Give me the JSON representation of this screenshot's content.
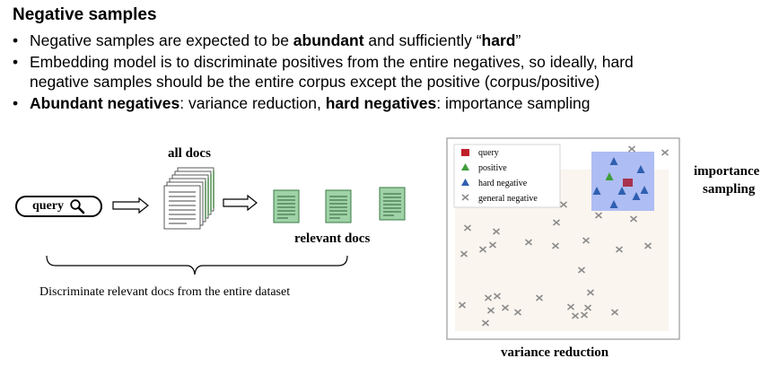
{
  "slide": {
    "title": "Negative samples",
    "bullet1": {
      "pre": "Negative samples are expected to be ",
      "b1": "abundant",
      "mid": " and sufficiently “",
      "b2": "hard",
      "post": "”"
    },
    "bullet2": {
      "line1": "Embedding model is to discriminate positives from the entire negatives, so ideally, hard",
      "line2": "negative samples should be the entire corpus except the positive (corpus/positive)"
    },
    "bullet3": {
      "b1": "Abundant negatives",
      "mid": ": variance reduction, ",
      "b2": "hard negatives",
      "post": ": importance sampling"
    }
  },
  "diagram": {
    "query_label": "query",
    "all_docs_label": "all docs",
    "relevant_docs_label": "relevant docs",
    "brace_caption": "Discriminate relevant docs from the entire dataset"
  },
  "scatter": {
    "legend": [
      {
        "label": "query",
        "marker": "square",
        "color": "#c0202a"
      },
      {
        "label": "positive",
        "marker": "triangle",
        "color": "#3f9e3a"
      },
      {
        "label": "hard negative",
        "marker": "triangle",
        "color": "#2f5fb0"
      },
      {
        "label": "general negative",
        "marker": "x",
        "color": "#8a8a8a"
      }
    ],
    "importance_label_1": "importance",
    "importance_label_2": "sampling",
    "variance_label": "variance reduction",
    "colors": {
      "region": "#faf5ef",
      "hard_region": "#aebdf3",
      "border": "#9a9a9a"
    }
  }
}
